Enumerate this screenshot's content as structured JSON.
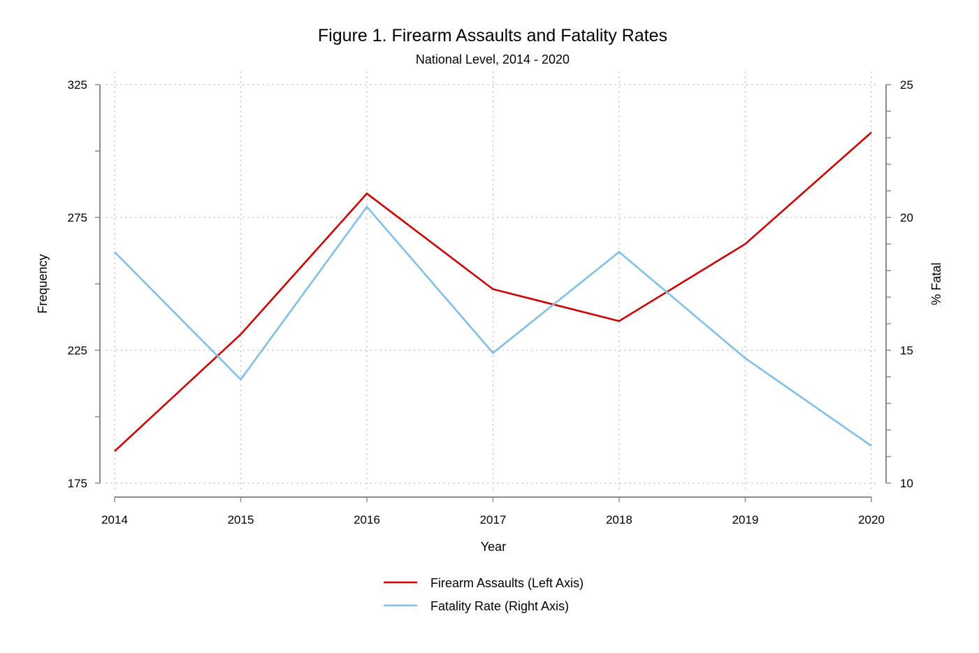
{
  "chart_data": {
    "type": "line",
    "title": "Figure 1. Firearm Assaults and Fatality Rates",
    "subtitle": "National Level, 2014 - 2020",
    "xlabel": "Year",
    "ylabel_left": "Frequency",
    "ylabel_right": "% Fatal",
    "x": [
      2014,
      2015,
      2016,
      2017,
      2018,
      2019,
      2020
    ],
    "x_tick_labels": [
      "2014",
      "2015",
      "2016",
      "2017",
      "2018",
      "2019",
      "2020"
    ],
    "ylim_left": [
      175,
      325
    ],
    "yticks_left": [
      "175",
      "225",
      "275",
      "325"
    ],
    "ylim_right": [
      10,
      25
    ],
    "yticks_right": [
      "10",
      "15",
      "20",
      "25"
    ],
    "grid": true,
    "legend_position": "bottom",
    "series": [
      {
        "name": "Firearm Assaults (Left Axis)",
        "axis": "left",
        "color": "#cc0000",
        "values": [
          187,
          231,
          284,
          248,
          236,
          265,
          307
        ]
      },
      {
        "name": "Fatality Rate (Right Axis)",
        "axis": "right",
        "color": "#82bfe6",
        "values": [
          18.7,
          13.9,
          20.4,
          14.9,
          18.7,
          14.7,
          11.4
        ]
      }
    ]
  }
}
